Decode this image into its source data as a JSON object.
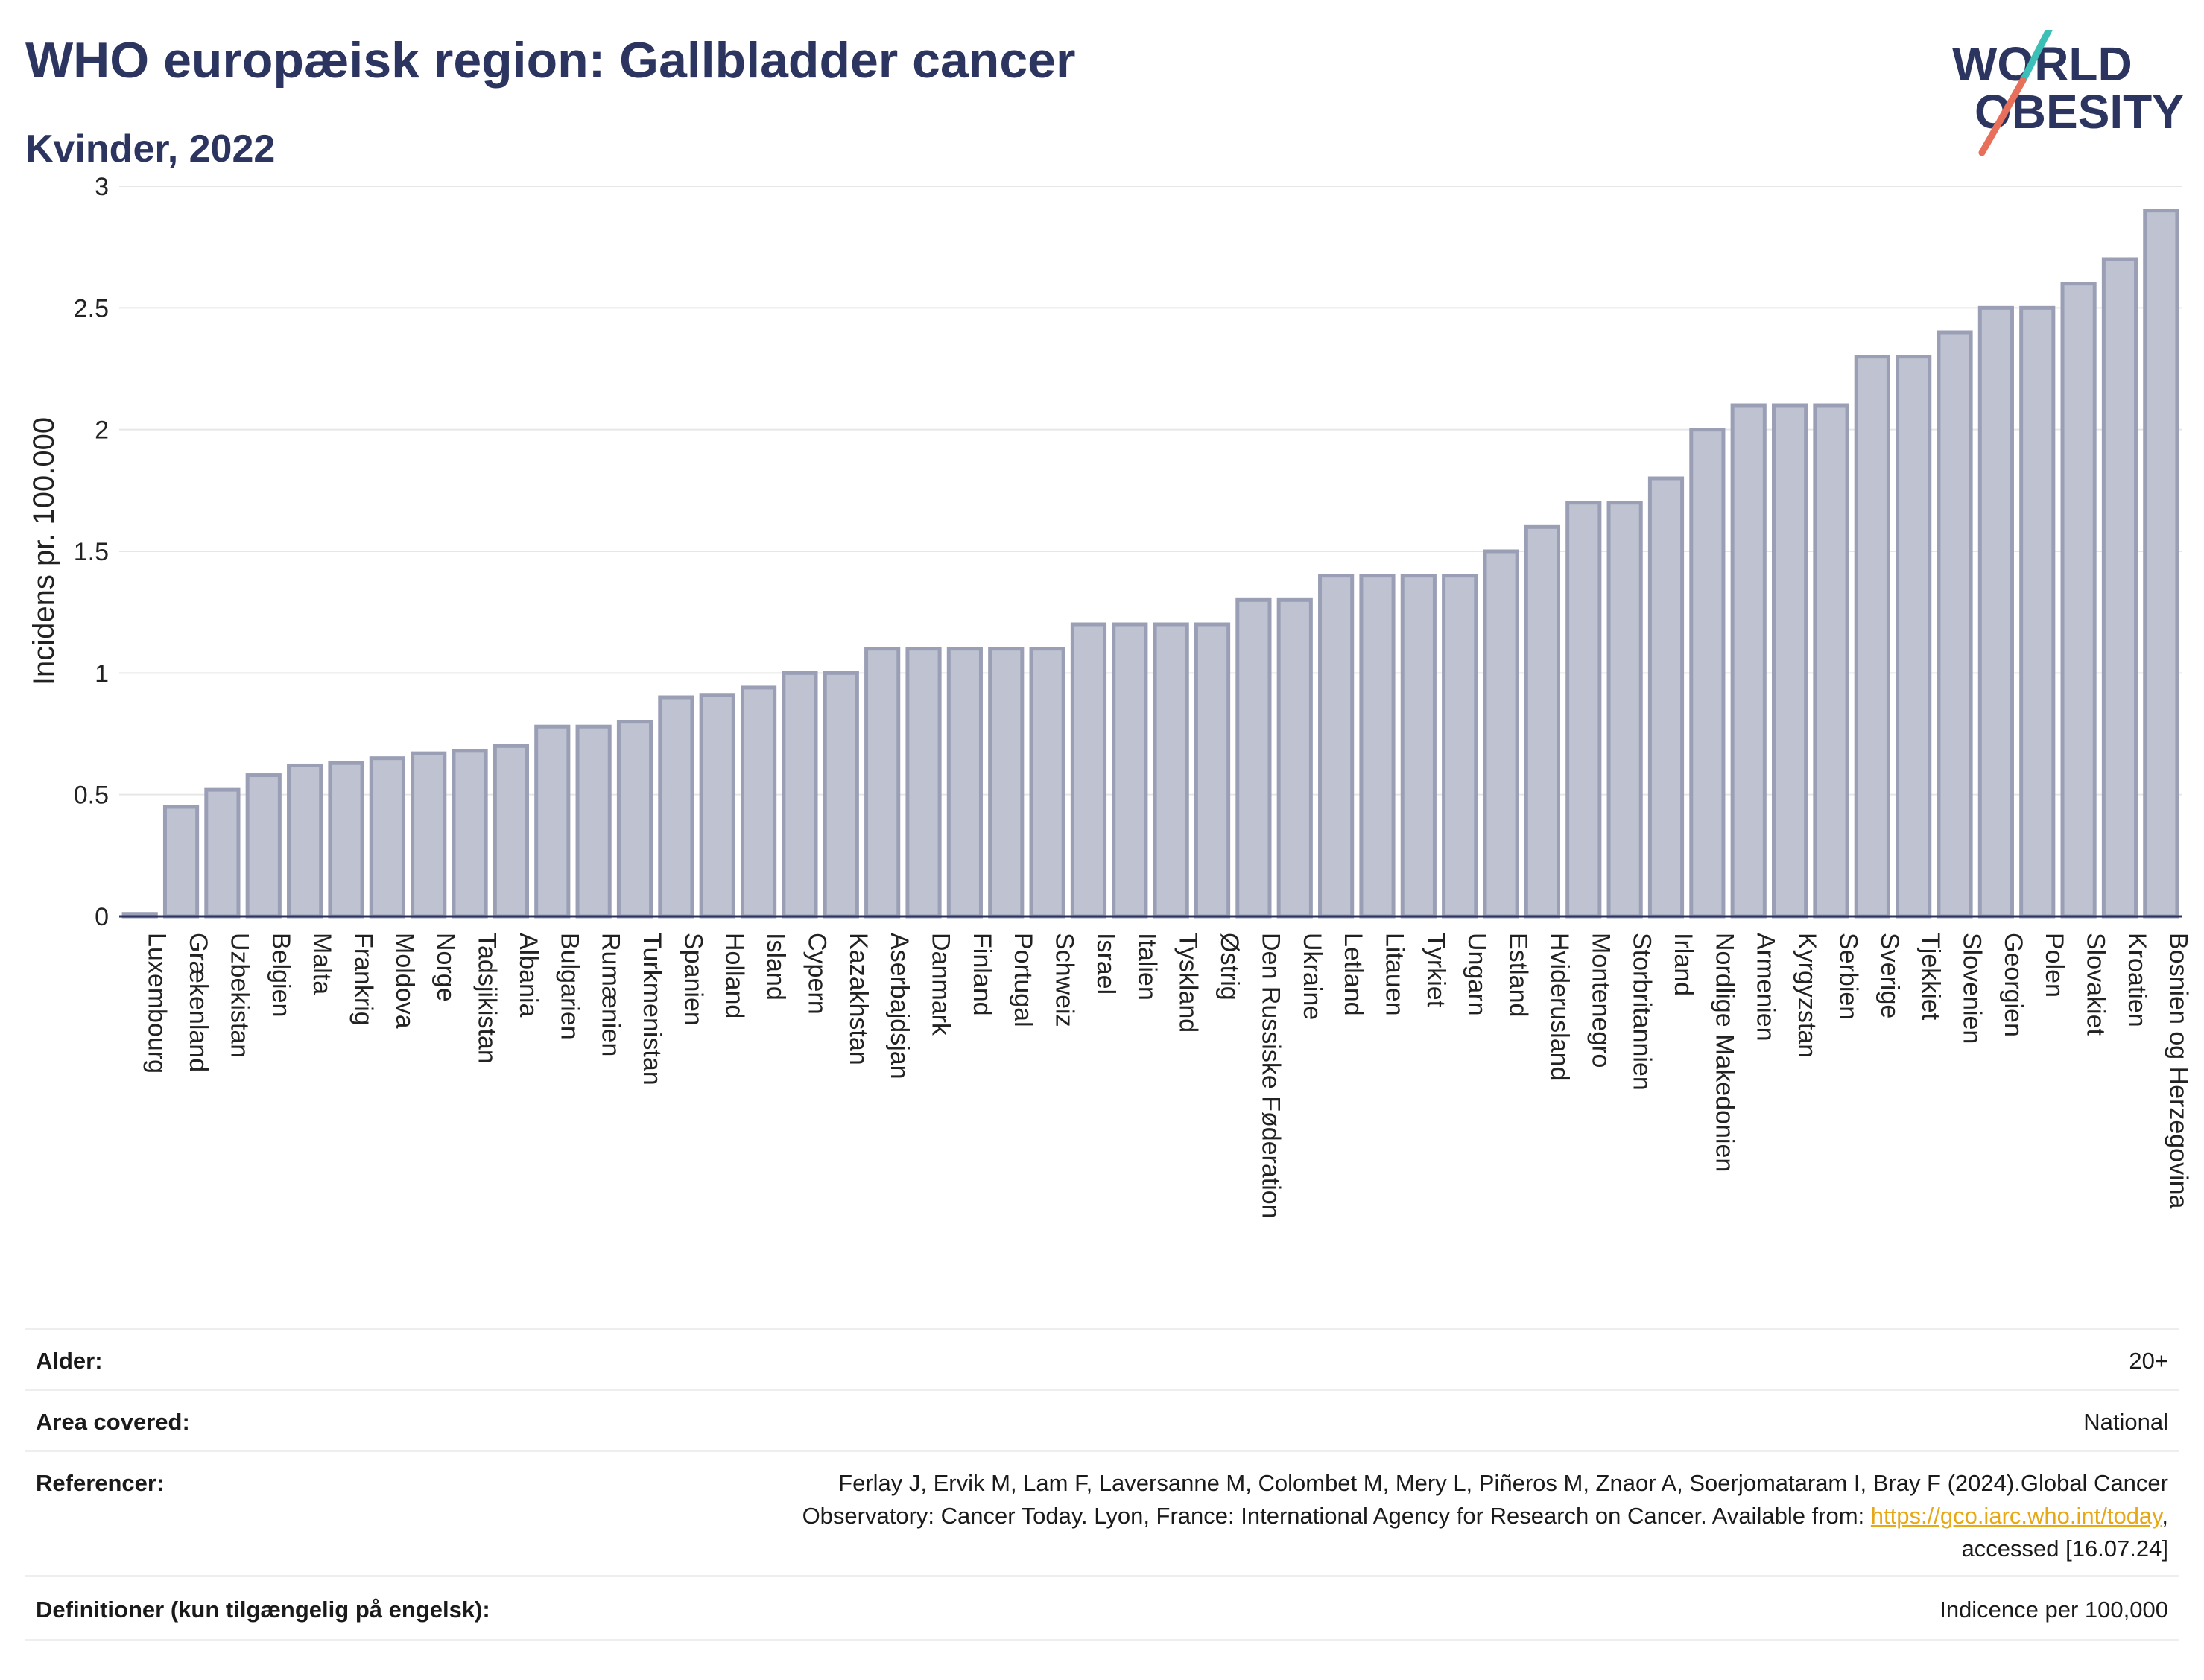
{
  "header": {
    "title": "WHO europæisk region: Gallbladder cancer",
    "subtitle": "Kvinder, 2022",
    "logo_line1": "WORLD",
    "logo_line2": "OBESITY"
  },
  "colors": {
    "title": "#2b3560",
    "bar_fill": "#bfc3d1",
    "bar_stroke": "#9a9fb6",
    "logo_navy": "#2b3560",
    "logo_teal": "#3bbfb6",
    "logo_coral": "#e8705a",
    "link": "#e7a817"
  },
  "chart_data": {
    "type": "bar",
    "ylabel": "Incidens pr. 100.000",
    "ylim": [
      0,
      3
    ],
    "yticks": [
      0,
      0.5,
      1,
      1.5,
      2,
      2.5,
      3
    ],
    "ytick_labels": [
      "0",
      "0.5",
      "1",
      "1.5",
      "2",
      "2.5",
      "3"
    ],
    "grid": true,
    "categories": [
      "Luxembourg",
      "Grækenland",
      "Uzbekistan",
      "Belgien",
      "Malta",
      "Frankrig",
      "Moldova",
      "Norge",
      "Tadsjikistan",
      "Albania",
      "Bulgarien",
      "Rumænien",
      "Turkmenistan",
      "Spanien",
      "Holland",
      "Island",
      "Cypern",
      "Kazakhstan",
      "Aserbajdsjan",
      "Danmark",
      "Finland",
      "Portugal",
      "Schweiz",
      "Israel",
      "Italien",
      "Tyskland",
      "Østrig",
      "Den Russiske Føderation",
      "Ukraine",
      "Letland",
      "Litauen",
      "Tyrkiet",
      "Ungarn",
      "Estland",
      "Hviderusland",
      "Montenegro",
      "Storbritannien",
      "Irland",
      "Nordlige Makedonien",
      "Armenien",
      "Kyrgyzstan",
      "Serbien",
      "Sverige",
      "Tjekkiet",
      "Slovenien",
      "Georgien",
      "Polen",
      "Slovakiet",
      "Kroatien",
      "Bosnien og Herzegovina"
    ],
    "values": [
      0.01,
      0.45,
      0.52,
      0.58,
      0.62,
      0.63,
      0.65,
      0.67,
      0.68,
      0.7,
      0.78,
      0.78,
      0.8,
      0.9,
      0.91,
      0.94,
      1.0,
      1.0,
      1.1,
      1.1,
      1.1,
      1.1,
      1.1,
      1.2,
      1.2,
      1.2,
      1.2,
      1.3,
      1.3,
      1.4,
      1.4,
      1.4,
      1.4,
      1.5,
      1.6,
      1.7,
      1.7,
      1.8,
      2.0,
      2.1,
      2.1,
      2.1,
      2.3,
      2.3,
      2.4,
      2.5,
      2.5,
      2.6,
      2.7,
      2.9
    ]
  },
  "meta": {
    "age_label": "Alder:",
    "age_value": "20+",
    "area_label": "Area covered:",
    "area_value": "National",
    "ref_label": "Referencer:",
    "ref_line1": "Ferlay J, Ervik M, Lam F, Laversanne M, Colombet M, Mery L, Piñeros M, Znaor A, Soerjomataram I, Bray F (2024).Global Cancer",
    "ref_line2a": "Observatory: Cancer Today. Lyon, France: International Agency for Research on Cancer. Available from: ",
    "ref_link": "https://gco.iarc.who.int/today",
    "ref_line2b": ",",
    "ref_line3": "accessed [16.07.24]",
    "def_label": "Definitioner (kun tilgængelig på engelsk):",
    "def_value": "Indicence per 100,000"
  }
}
